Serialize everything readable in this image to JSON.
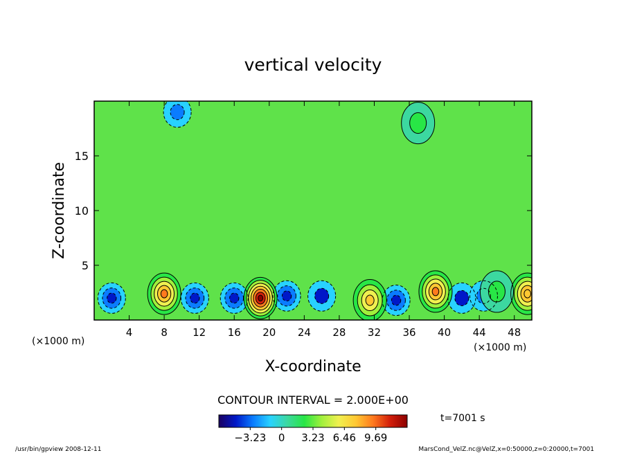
{
  "chart_data": {
    "type": "heatmap",
    "title": "vertical velocity",
    "xlabel": "X-coordinate",
    "ylabel": "Z-coordinate",
    "x_unit_label": "(×1000 m)",
    "xlim": [
      0,
      50
    ],
    "ylim": [
      0,
      20
    ],
    "x_ticks": [
      4,
      8,
      12,
      16,
      20,
      24,
      28,
      32,
      36,
      40,
      44,
      48
    ],
    "y_ticks": [
      5,
      10,
      15
    ],
    "contour_interval_label": "CONTOUR INTERVAL = 2.000E+00",
    "time_label": "t=7001 s",
    "colorbar": {
      "range": [
        -6.46,
        12.92
      ],
      "tick_values": [
        -3.23,
        0,
        3.23,
        6.46,
        9.69
      ],
      "tick_labels": [
        "−3.23",
        "0",
        "3.23",
        "6.46",
        "9.69"
      ],
      "colormap": [
        "#1a0060",
        "#0018c8",
        "#0a7cff",
        "#28d2ff",
        "#3cd8a0",
        "#28e646",
        "#a0f03c",
        "#f0f050",
        "#ffc832",
        "#ff7a1e",
        "#d21e0a",
        "#8c0000"
      ]
    },
    "updrafts": [
      {
        "x": 8.0,
        "z": 2.4,
        "w": 10.0
      },
      {
        "x": 19.0,
        "z": 2.0,
        "w": 12.5
      },
      {
        "x": 31.5,
        "z": 1.8,
        "w": 8.0
      },
      {
        "x": 39.0,
        "z": 2.6,
        "w": 10.0
      },
      {
        "x": 49.5,
        "z": 2.4,
        "w": 8.5
      },
      {
        "x": 46.0,
        "z": 2.6,
        "w": 2.0
      },
      {
        "x": 37.0,
        "z": 18.0,
        "w": 2.0
      }
    ],
    "downdrafts": [
      {
        "x": 2.0,
        "z": 2.0,
        "w": -5.0
      },
      {
        "x": 11.5,
        "z": 2.0,
        "w": -4.5
      },
      {
        "x": 16.0,
        "z": 2.0,
        "w": -5.0
      },
      {
        "x": 22.0,
        "z": 2.2,
        "w": -5.5
      },
      {
        "x": 26.0,
        "z": 2.2,
        "w": -4.0
      },
      {
        "x": 34.5,
        "z": 1.8,
        "w": -5.0
      },
      {
        "x": 42.0,
        "z": 2.0,
        "w": -4.0
      },
      {
        "x": 44.5,
        "z": 2.2,
        "w": -3.5
      },
      {
        "x": 9.5,
        "z": 19.0,
        "w": -3.0
      }
    ]
  },
  "footer": {
    "left": "/usr/bin/gpview   2008-12-11",
    "right": "MarsCond_VelZ.nc@VelZ,x=0:50000,z=0:20000,t=7001"
  }
}
